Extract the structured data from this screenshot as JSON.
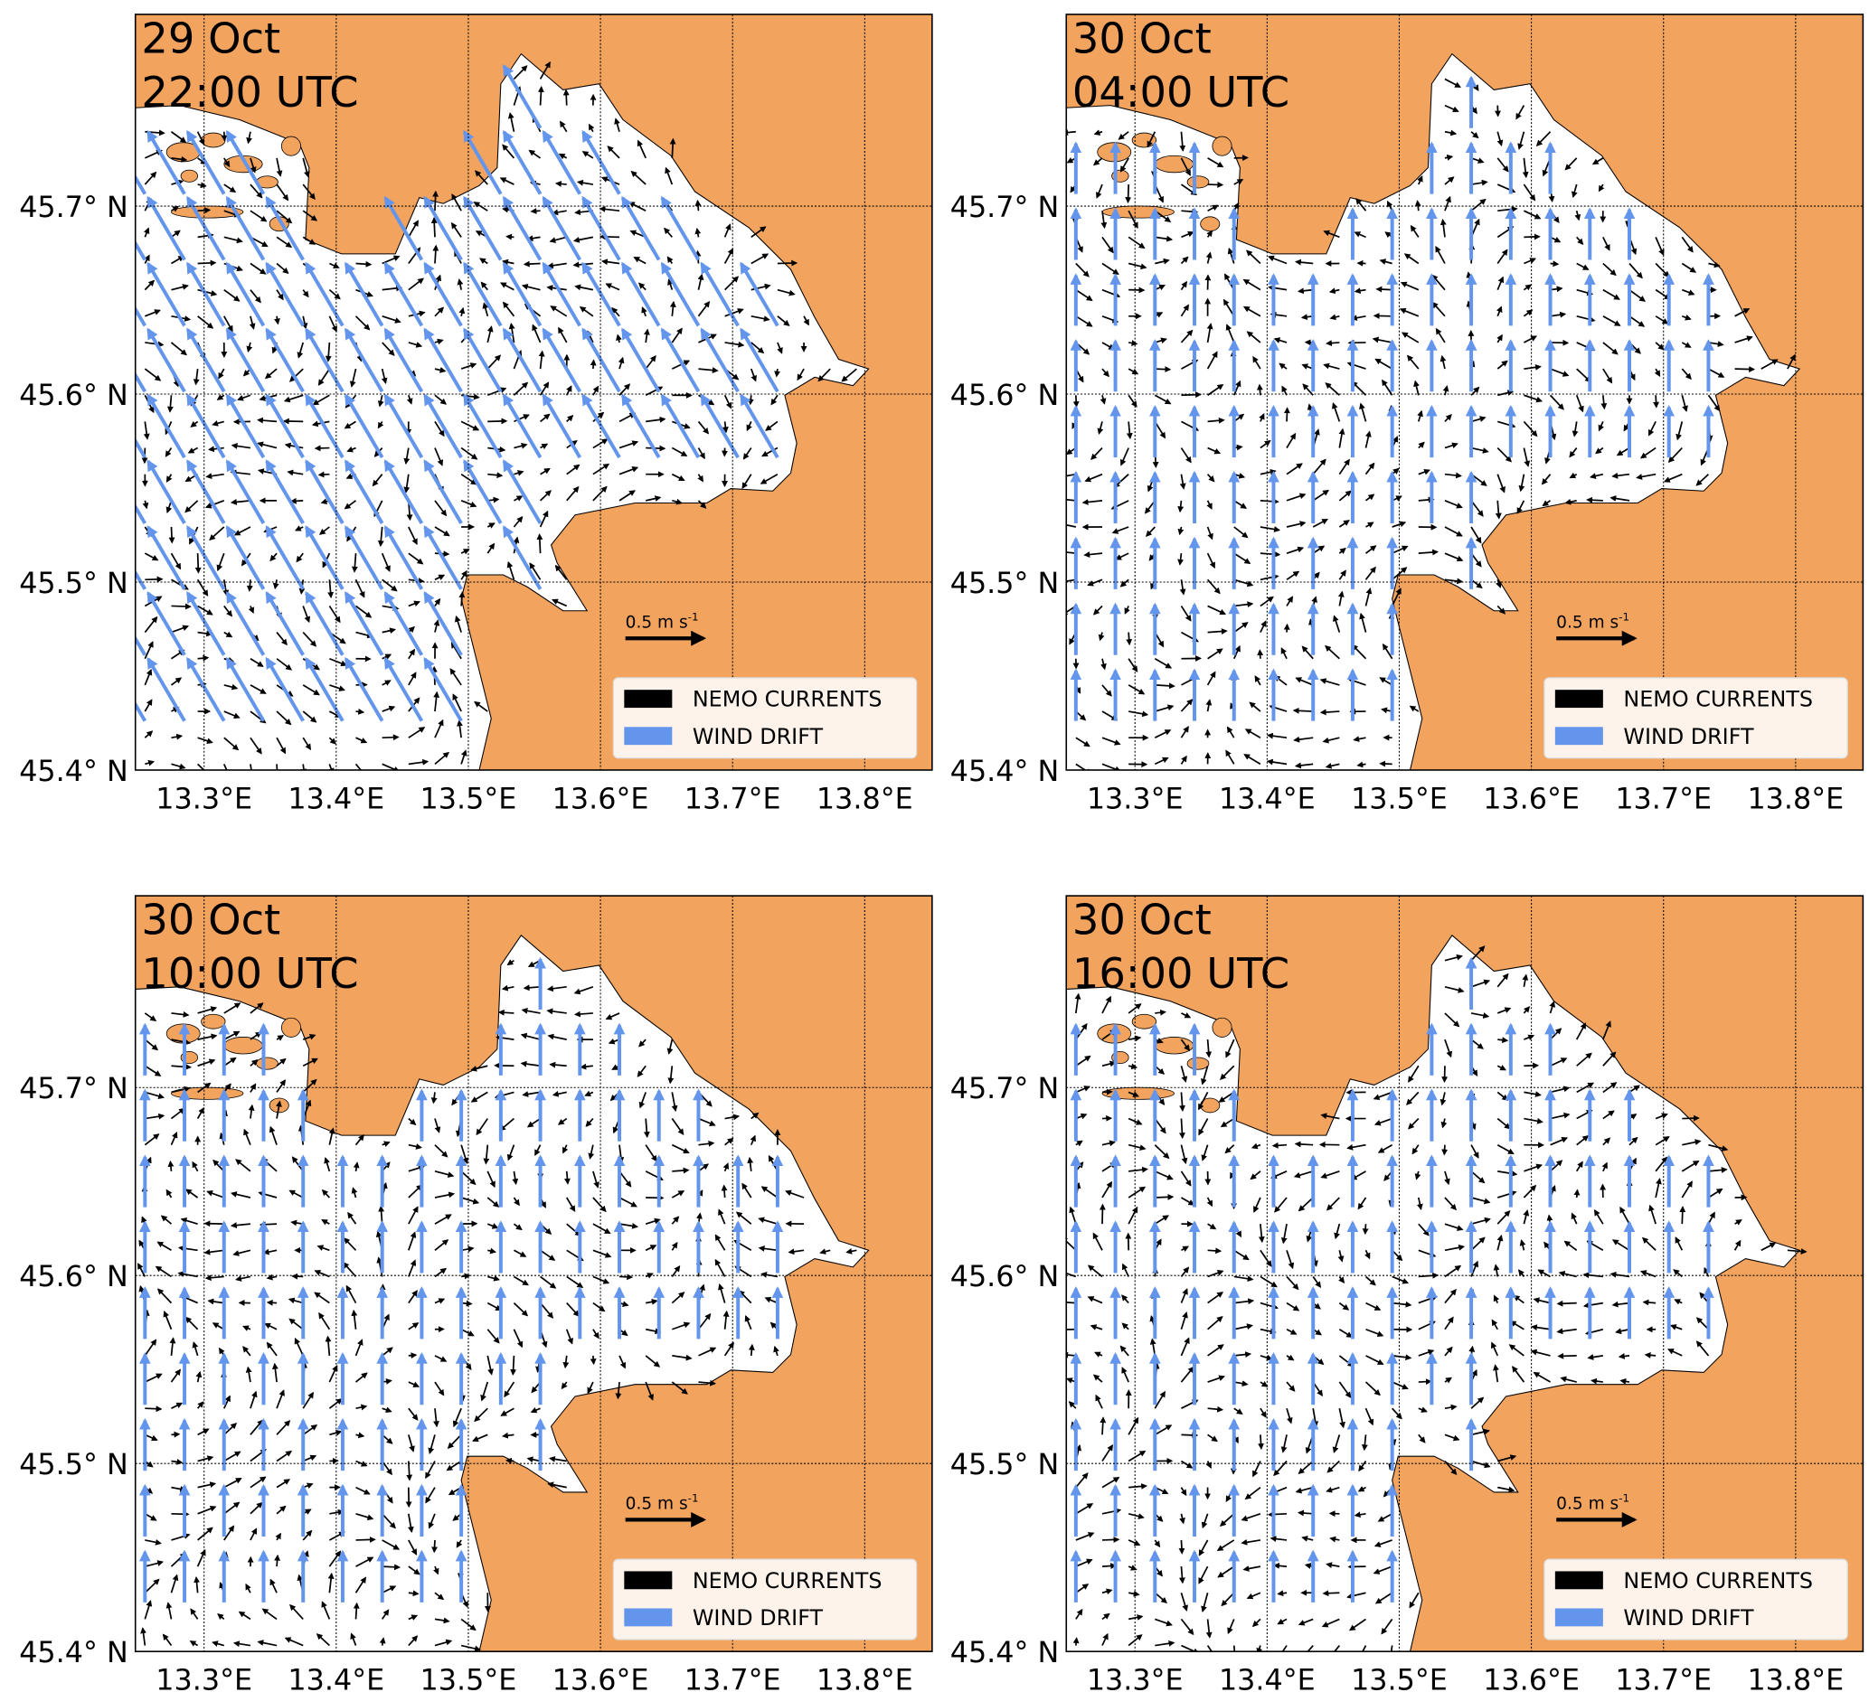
{
  "map": {
    "xlim": [
      13.248,
      13.851
    ],
    "ylim": [
      45.4,
      45.802
    ],
    "xticks": [
      {
        "value": 13.3,
        "label": "13.3°E"
      },
      {
        "value": 13.4,
        "label": "13.4°E"
      },
      {
        "value": 13.5,
        "label": "13.5°E"
      },
      {
        "value": 13.6,
        "label": "13.6°E"
      },
      {
        "value": 13.7,
        "label": "13.7°E"
      },
      {
        "value": 13.8,
        "label": "13.8°E"
      }
    ],
    "yticks": [
      {
        "value": 45.4,
        "label": "45.4° N"
      },
      {
        "value": 45.5,
        "label": "45.5° N"
      },
      {
        "value": 45.6,
        "label": "45.6° N"
      },
      {
        "value": 45.7,
        "label": "45.7° N"
      }
    ],
    "grid": true,
    "land_color": "#f2a35e",
    "sea_color": "#ffffff"
  },
  "legend": [
    {
      "name": "NEMO CURRENTS",
      "color": "#000000"
    },
    {
      "name": "WIND DRIFT",
      "color": "#6495ed"
    }
  ],
  "scale_label": "0.5 m s",
  "scale_unit_exp": "-1",
  "panels": [
    {
      "title": [
        "29 Oct",
        "22:00 UTC"
      ]
    },
    {
      "title": [
        "30 Oct",
        "04:00 UTC"
      ]
    },
    {
      "title": [
        "30 Oct",
        "10:00 UTC"
      ]
    },
    {
      "title": [
        "30 Oct",
        "16:00 UTC"
      ]
    }
  ]
}
